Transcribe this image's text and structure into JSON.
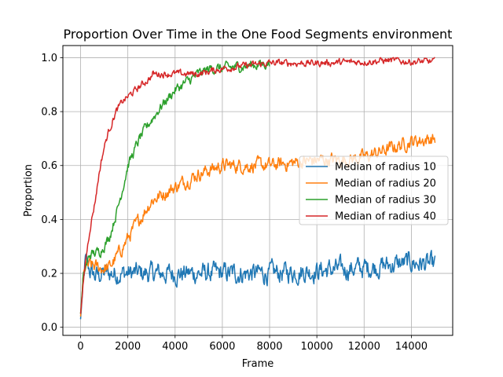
{
  "chart_data": {
    "type": "line",
    "title": "Proportion Over Time in the One Food Segments environment",
    "xlabel": "Frame",
    "ylabel": "Proportion",
    "xlim": [
      -750,
      15750
    ],
    "ylim": [
      -0.03,
      1.045
    ],
    "xticks": [
      0,
      2000,
      4000,
      6000,
      8000,
      10000,
      12000,
      14000
    ],
    "xtick_labels": [
      "0",
      "2000",
      "4000",
      "6000",
      "8000",
      "10000",
      "12000",
      "14000"
    ],
    "yticks": [
      0.0,
      0.2,
      0.4,
      0.6,
      0.8,
      1.0
    ],
    "ytick_labels": [
      "0.0",
      "0.2",
      "0.4",
      "0.6",
      "0.8",
      "1.0"
    ],
    "grid": true,
    "legend_position": "center-right",
    "series": [
      {
        "name": "Median of radius 10",
        "color": "#1f77b4",
        "noise": 0.03,
        "x": [
          0,
          100,
          200,
          400,
          600,
          1000,
          2000,
          4000,
          6000,
          8000,
          10000,
          12000,
          14000,
          15000
        ],
        "y": [
          0.03,
          0.15,
          0.24,
          0.21,
          0.19,
          0.2,
          0.2,
          0.2,
          0.2,
          0.2,
          0.21,
          0.22,
          0.24,
          0.23
        ]
      },
      {
        "name": "Median of radius 20",
        "color": "#ff7f0e",
        "noise": 0.02,
        "x": [
          0,
          100,
          200,
          400,
          800,
          1200,
          1600,
          2000,
          2500,
          3000,
          4000,
          5000,
          6000,
          7000,
          8000,
          9000,
          10000,
          11000,
          12000,
          13000,
          14000,
          15000
        ],
        "y": [
          0.04,
          0.17,
          0.22,
          0.23,
          0.22,
          0.22,
          0.27,
          0.33,
          0.4,
          0.47,
          0.52,
          0.57,
          0.6,
          0.6,
          0.6,
          0.61,
          0.62,
          0.62,
          0.63,
          0.66,
          0.69,
          0.7
        ]
      },
      {
        "name": "Median of radius 30",
        "color": "#2ca02c",
        "noise": 0.015,
        "x": [
          0,
          100,
          200,
          400,
          800,
          1200,
          1600,
          2000,
          2500,
          3000,
          3500,
          4000,
          4500,
          5000,
          5500,
          6000,
          7000,
          8000
        ],
        "y": [
          0.05,
          0.17,
          0.22,
          0.27,
          0.28,
          0.33,
          0.45,
          0.6,
          0.7,
          0.77,
          0.83,
          0.88,
          0.91,
          0.94,
          0.96,
          0.96,
          0.97,
          0.98
        ]
      },
      {
        "name": "Median of radius 40",
        "color": "#d62728",
        "noise": 0.01,
        "x": [
          0,
          200,
          400,
          600,
          800,
          1000,
          1200,
          1500,
          1800,
          2200,
          2600,
          3000,
          3050,
          5000,
          6000,
          8000,
          10000,
          12000,
          13000,
          14000,
          15000
        ],
        "y": [
          0.05,
          0.24,
          0.37,
          0.46,
          0.58,
          0.67,
          0.73,
          0.8,
          0.84,
          0.87,
          0.9,
          0.93,
          0.94,
          0.94,
          0.96,
          0.98,
          0.98,
          0.985,
          0.99,
          0.985,
          0.985
        ]
      }
    ]
  }
}
